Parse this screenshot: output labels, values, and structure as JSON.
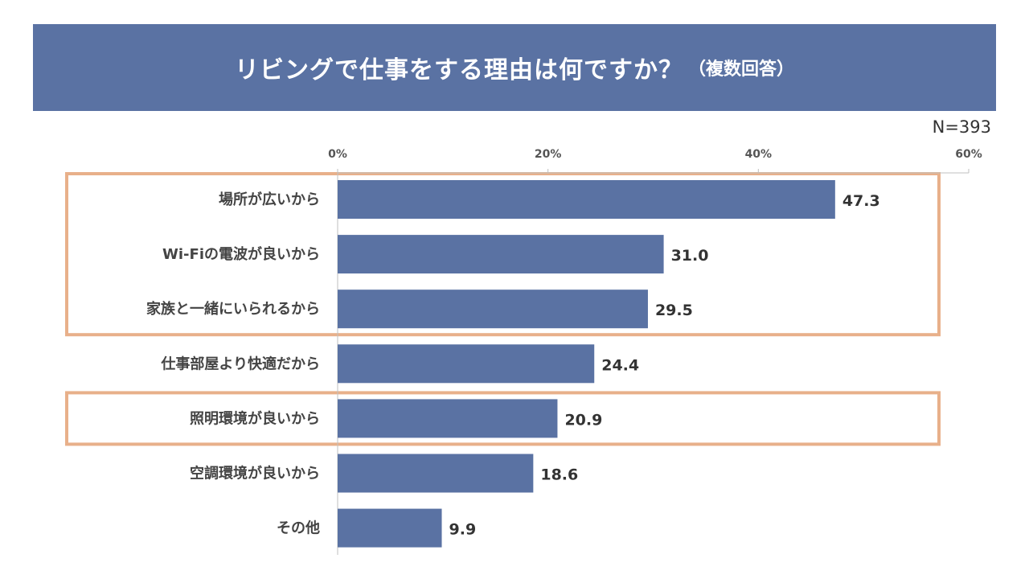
{
  "title": "リビングで仕事をする理由は何ですか？",
  "subtitle": "（複数回答）",
  "sample_size": "N=393",
  "colors": {
    "banner": "#5A72A3",
    "bar": "#5A72A3",
    "highlight": "#E8B08A"
  },
  "chart_data": {
    "type": "bar",
    "orientation": "horizontal",
    "title": "リビングで仕事をする理由は何ですか？（複数回答）",
    "xlabel": "",
    "ylabel": "",
    "xlim": [
      0,
      60
    ],
    "ticks": [
      0,
      20,
      40,
      60
    ],
    "tick_labels": [
      "0%",
      "20%",
      "40%",
      "60%"
    ],
    "categories": [
      "場所が広いから",
      "Wi-Fiの電波が良いから",
      "家族と一緒にいられるから",
      "仕事部屋より快適だから",
      "照明環境が良いから",
      "空調環境が良いから",
      "その他"
    ],
    "values": [
      47.3,
      31.0,
      29.5,
      24.4,
      20.9,
      18.6,
      9.9
    ],
    "value_labels": [
      "47.3",
      "31.0",
      "29.5",
      "24.4",
      "20.9",
      "18.6",
      "9.9"
    ],
    "highlight_groups": [
      [
        0,
        2
      ],
      [
        4,
        4
      ]
    ]
  }
}
